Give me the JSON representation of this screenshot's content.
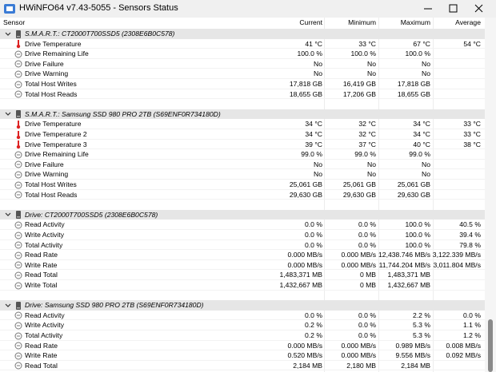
{
  "window": {
    "title": "HWiNFO64 v7.43-5055 - Sensors Status"
  },
  "columns": [
    "Sensor",
    "Current",
    "Minimum",
    "Maximum",
    "Average"
  ],
  "groups": [
    {
      "name": "S.M.A.R.T.: CT2000T700SSD5 (2308E6B0C578)",
      "rows": [
        {
          "icon": "thermometer",
          "label": "Drive Temperature",
          "current": "41 °C",
          "minimum": "33 °C",
          "maximum": "67 °C",
          "average": "54 °C"
        },
        {
          "icon": "gauge",
          "label": "Drive Remaining Life",
          "current": "100.0 %",
          "minimum": "100.0 %",
          "maximum": "100.0 %"
        },
        {
          "icon": "gauge",
          "label": "Drive Failure",
          "current": "No",
          "minimum": "No",
          "maximum": "No"
        },
        {
          "icon": "gauge",
          "label": "Drive Warning",
          "current": "No",
          "minimum": "No",
          "maximum": "No"
        },
        {
          "icon": "gauge",
          "label": "Total Host Writes",
          "current": "17,818 GB",
          "minimum": "16,419 GB",
          "maximum": "17,818 GB"
        },
        {
          "icon": "gauge",
          "label": "Total Host Reads",
          "current": "18,655 GB",
          "minimum": "17,206 GB",
          "maximum": "18,655 GB"
        }
      ]
    },
    {
      "name": "S.M.A.R.T.: Samsung SSD 980 PRO 2TB (S69ENF0R734180D)",
      "rows": [
        {
          "icon": "thermometer",
          "label": "Drive Temperature",
          "current": "34 °C",
          "minimum": "32 °C",
          "maximum": "34 °C",
          "average": "33 °C"
        },
        {
          "icon": "thermometer",
          "label": "Drive Temperature 2",
          "current": "34 °C",
          "minimum": "32 °C",
          "maximum": "34 °C",
          "average": "33 °C"
        },
        {
          "icon": "thermometer",
          "label": "Drive Temperature 3",
          "current": "39 °C",
          "minimum": "37 °C",
          "maximum": "40 °C",
          "average": "38 °C"
        },
        {
          "icon": "gauge",
          "label": "Drive Remaining Life",
          "current": "99.0 %",
          "minimum": "99.0 %",
          "maximum": "99.0 %"
        },
        {
          "icon": "gauge",
          "label": "Drive Failure",
          "current": "No",
          "minimum": "No",
          "maximum": "No"
        },
        {
          "icon": "gauge",
          "label": "Drive Warning",
          "current": "No",
          "minimum": "No",
          "maximum": "No"
        },
        {
          "icon": "gauge",
          "label": "Total Host Writes",
          "current": "25,061 GB",
          "minimum": "25,061 GB",
          "maximum": "25,061 GB"
        },
        {
          "icon": "gauge",
          "label": "Total Host Reads",
          "current": "29,630 GB",
          "minimum": "29,630 GB",
          "maximum": "29,630 GB"
        }
      ]
    },
    {
      "name": "Drive: CT2000T700SSD5 (2308E6B0C578)",
      "rows": [
        {
          "icon": "gauge",
          "label": "Read Activity",
          "current": "0.0 %",
          "minimum": "0.0 %",
          "maximum": "100.0 %",
          "average": "40.5 %"
        },
        {
          "icon": "gauge",
          "label": "Write Activity",
          "current": "0.0 %",
          "minimum": "0.0 %",
          "maximum": "100.0 %",
          "average": "39.4 %"
        },
        {
          "icon": "gauge",
          "label": "Total Activity",
          "current": "0.0 %",
          "minimum": "0.0 %",
          "maximum": "100.0 %",
          "average": "79.8 %"
        },
        {
          "icon": "gauge",
          "label": "Read Rate",
          "current": "0.000 MB/s",
          "minimum": "0.000 MB/s",
          "maximum": "12,438.746 MB/s",
          "average": "3,122.339 MB/s"
        },
        {
          "icon": "gauge",
          "label": "Write Rate",
          "current": "0.000 MB/s",
          "minimum": "0.000 MB/s",
          "maximum": "11,744.204 MB/s",
          "average": "3,011.804 MB/s"
        },
        {
          "icon": "gauge",
          "label": "Read Total",
          "current": "1,483,371 MB",
          "minimum": "0 MB",
          "maximum": "1,483,371 MB"
        },
        {
          "icon": "gauge",
          "label": "Write Total",
          "current": "1,432,667 MB",
          "minimum": "0 MB",
          "maximum": "1,432,667 MB"
        }
      ]
    },
    {
      "name": "Drive: Samsung SSD 980 PRO 2TB (S69ENF0R734180D)",
      "rows": [
        {
          "icon": "gauge",
          "label": "Read Activity",
          "current": "0.0 %",
          "minimum": "0.0 %",
          "maximum": "2.2 %",
          "average": "0.0 %"
        },
        {
          "icon": "gauge",
          "label": "Write Activity",
          "current": "0.2 %",
          "minimum": "0.0 %",
          "maximum": "5.3 %",
          "average": "1.1 %"
        },
        {
          "icon": "gauge",
          "label": "Total Activity",
          "current": "0.2 %",
          "minimum": "0.0 %",
          "maximum": "5.3 %",
          "average": "1.2 %"
        },
        {
          "icon": "gauge",
          "label": "Read Rate",
          "current": "0.000 MB/s",
          "minimum": "0.000 MB/s",
          "maximum": "0.989 MB/s",
          "average": "0.008 MB/s"
        },
        {
          "icon": "gauge",
          "label": "Write Rate",
          "current": "0.520 MB/s",
          "minimum": "0.000 MB/s",
          "maximum": "9.556 MB/s",
          "average": "0.092 MB/s"
        },
        {
          "icon": "gauge",
          "label": "Read Total",
          "current": "2,184 MB",
          "minimum": "2,180 MB",
          "maximum": "2,184 MB"
        }
      ]
    }
  ]
}
